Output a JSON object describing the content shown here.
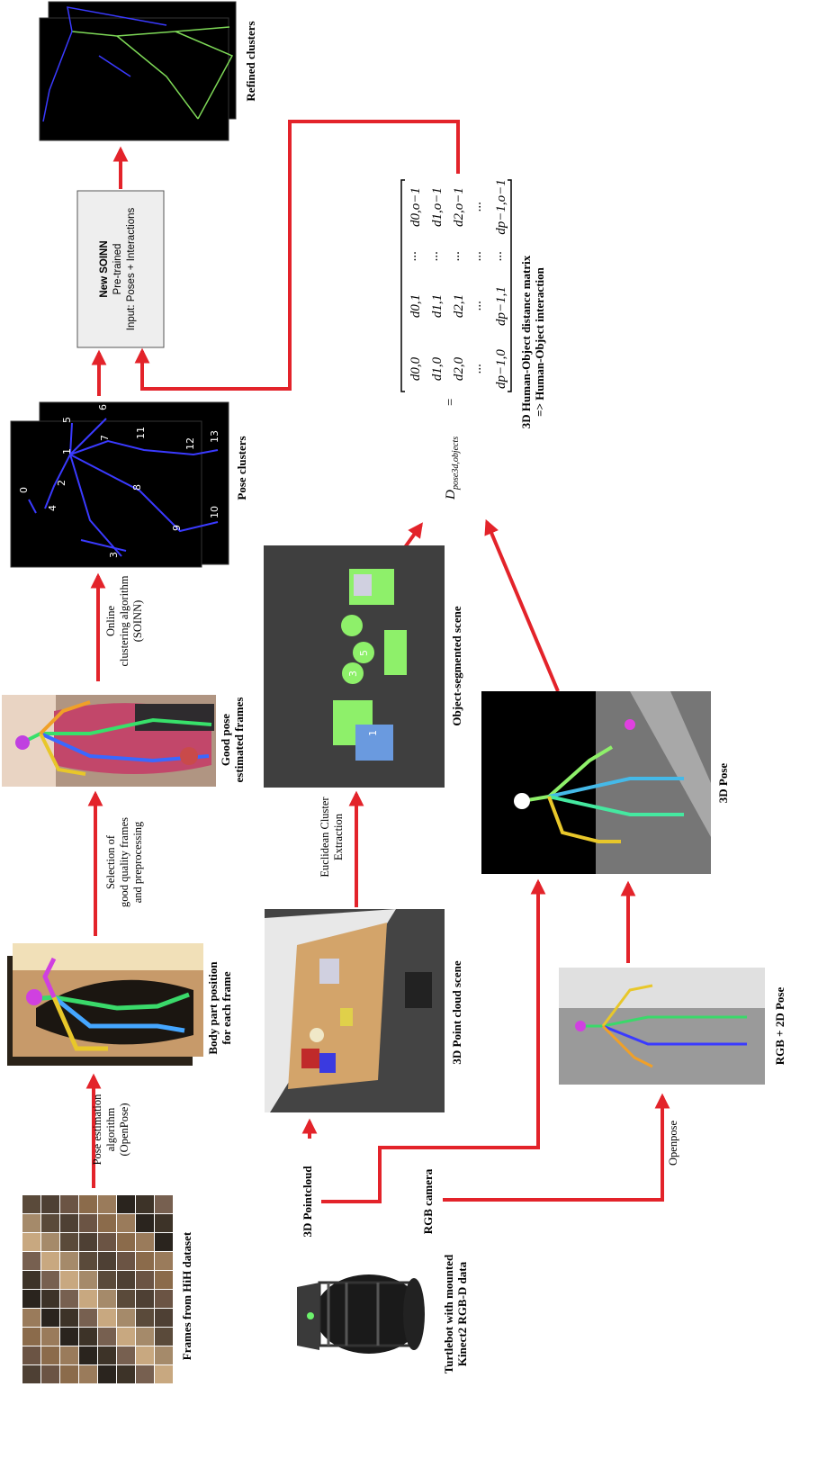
{
  "labels": {
    "frames_hih": "Frames from HiH dataset",
    "pose_estimation": [
      "Pose estimation",
      "algorithm",
      "(OpenPose)"
    ],
    "body_part": [
      "Body part position",
      "for each frame"
    ],
    "selection": [
      "Selection of",
      "good quality frames",
      "and preprocessing"
    ],
    "good_pose": [
      "Good pose",
      "estimated frames"
    ],
    "online_clustering": [
      "Online",
      "clustering algorithm",
      "(SOINN)"
    ],
    "pose_clusters": "Pose clusters",
    "soinn_box": [
      "New SOINN",
      "Pre-trained",
      "Input: Poses + Interactions"
    ],
    "refined_clusters": "Refined clusters",
    "turtlebot": [
      "Turtlebot with mounted",
      "Kinect2 RGB-D data"
    ],
    "pointcloud_3d": "3D Pointcloud",
    "rgb_camera": "RGB camera",
    "openpose": "Openpose",
    "point_cloud_scene": "3D Point cloud scene",
    "euclidean": [
      "Euclidean Cluster",
      "Extraction"
    ],
    "object_segmented": "Object-segmented scene",
    "rgb_2d_pose": "RGB + 2D Pose",
    "pose_3d": "3D Pose",
    "matrix_caption": [
      "3D Human-Object distance matrix",
      "=> Human-Object interaction"
    ],
    "matrix_lhs": "D",
    "matrix_lhs_sub": "pose3d,objects",
    "matrix_eq": "=",
    "matrix_rows": [
      [
        "d0,0",
        "d0,1",
        "···",
        "d0,o−1"
      ],
      [
        "d1,0",
        "d1,1",
        "···",
        "d1,o−1"
      ],
      [
        "d2,0",
        "d2,1",
        "···",
        "d2,o−1"
      ],
      [
        "···",
        "···",
        "···",
        "···"
      ],
      [
        "dp−1,0",
        "dp−1,1",
        "···",
        "dp−1,o−1"
      ]
    ]
  },
  "pose_cluster_numbers": [
    "0",
    "1",
    "2",
    "3",
    "4",
    "5",
    "6",
    "7",
    "8",
    "9",
    "10",
    "11",
    "12",
    "13"
  ],
  "scene_object_numbers": [
    "1",
    "3",
    "5"
  ],
  "colors": {
    "arrow": "#e3232a",
    "box_fill": "#eeeeee",
    "box_stroke": "#555555",
    "skeleton_blue": "#3a3aff",
    "skeleton_green": "#7ed957",
    "segment_green": "#8ef06a"
  }
}
